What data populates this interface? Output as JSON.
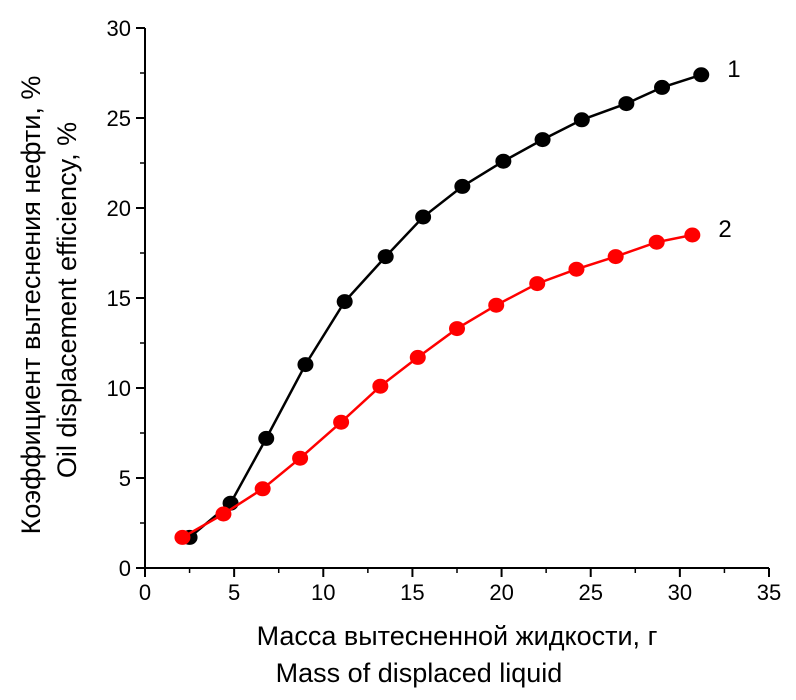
{
  "chart_data": {
    "type": "line",
    "title": "",
    "xlabel": [
      "Масса вытесненной жидкости, г",
      "Mass of displaced liquid"
    ],
    "ylabel": [
      "Коэффициент вытеснения нефти, %",
      "Oil displacement efficiency, %"
    ],
    "xlim": [
      0,
      35
    ],
    "ylim": [
      0,
      30
    ],
    "xticks": [
      0,
      5,
      10,
      15,
      20,
      25,
      30,
      35
    ],
    "yticks": [
      0,
      5,
      10,
      15,
      20,
      25,
      30
    ],
    "grid": false,
    "series": [
      {
        "name": "1",
        "color": "#000000",
        "x": [
          2.5,
          4.8,
          6.8,
          9.0,
          11.2,
          13.5,
          15.6,
          17.8,
          20.1,
          22.3,
          24.5,
          27.0,
          29.0,
          31.2
        ],
        "y": [
          1.7,
          3.6,
          7.2,
          11.3,
          14.8,
          17.3,
          19.5,
          21.2,
          22.6,
          23.8,
          24.9,
          25.8,
          26.7,
          27.4
        ]
      },
      {
        "name": "2",
        "color": "#ff0000",
        "x": [
          2.1,
          4.4,
          6.6,
          8.7,
          11.0,
          13.2,
          15.3,
          17.5,
          19.7,
          22.0,
          24.2,
          26.4,
          28.7,
          30.7
        ],
        "y": [
          1.7,
          3.0,
          4.4,
          6.1,
          8.1,
          10.1,
          11.7,
          13.3,
          14.6,
          15.8,
          16.6,
          17.3,
          18.1,
          18.5
        ]
      }
    ]
  }
}
